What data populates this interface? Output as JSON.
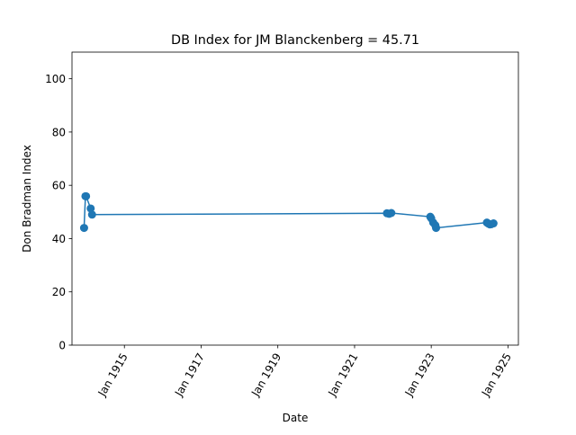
{
  "chart_data": {
    "type": "line",
    "title": "DB Index for JM Blanckenberg = 45.71",
    "xlabel": "Date",
    "ylabel": "Don Bradman Index",
    "xlim": [
      "1913-08-20",
      "1925-04-10"
    ],
    "ylim": [
      0,
      110
    ],
    "x_ticks": [
      {
        "date": "1915-01-01",
        "label": "Jan 1915"
      },
      {
        "date": "1917-01-01",
        "label": "Jan 1917"
      },
      {
        "date": "1919-01-01",
        "label": "Jan 1919"
      },
      {
        "date": "1921-01-01",
        "label": "Jan 1921"
      },
      {
        "date": "1923-01-01",
        "label": "Jan 1923"
      },
      {
        "date": "1925-01-01",
        "label": "Jan 1925"
      }
    ],
    "y_ticks": [
      0,
      20,
      40,
      60,
      80,
      100
    ],
    "grid": false,
    "marker": "circle",
    "color": "#1f77b4",
    "series": [
      {
        "points": [
          {
            "x": "1913-12-13",
            "y": 44.0
          },
          {
            "x": "1913-12-26",
            "y": 55.9
          },
          {
            "x": "1914-01-01",
            "y": 55.9
          },
          {
            "x": "1914-02-14",
            "y": 51.3
          },
          {
            "x": "1914-02-27",
            "y": 49.0
          },
          {
            "x": "1921-11-05",
            "y": 49.5
          },
          {
            "x": "1921-11-26",
            "y": 49.3
          },
          {
            "x": "1921-12-17",
            "y": 49.6
          },
          {
            "x": "1922-12-23",
            "y": 48.2
          },
          {
            "x": "1923-01-01",
            "y": 47.6
          },
          {
            "x": "1923-01-20",
            "y": 46.0
          },
          {
            "x": "1923-02-09",
            "y": 45.0
          },
          {
            "x": "1923-02-16",
            "y": 44.0
          },
          {
            "x": "1924-06-14",
            "y": 46.0
          },
          {
            "x": "1924-06-28",
            "y": 45.6
          },
          {
            "x": "1924-07-12",
            "y": 45.3
          },
          {
            "x": "1924-07-26",
            "y": 45.4
          },
          {
            "x": "1924-08-16",
            "y": 45.71
          }
        ]
      }
    ]
  }
}
